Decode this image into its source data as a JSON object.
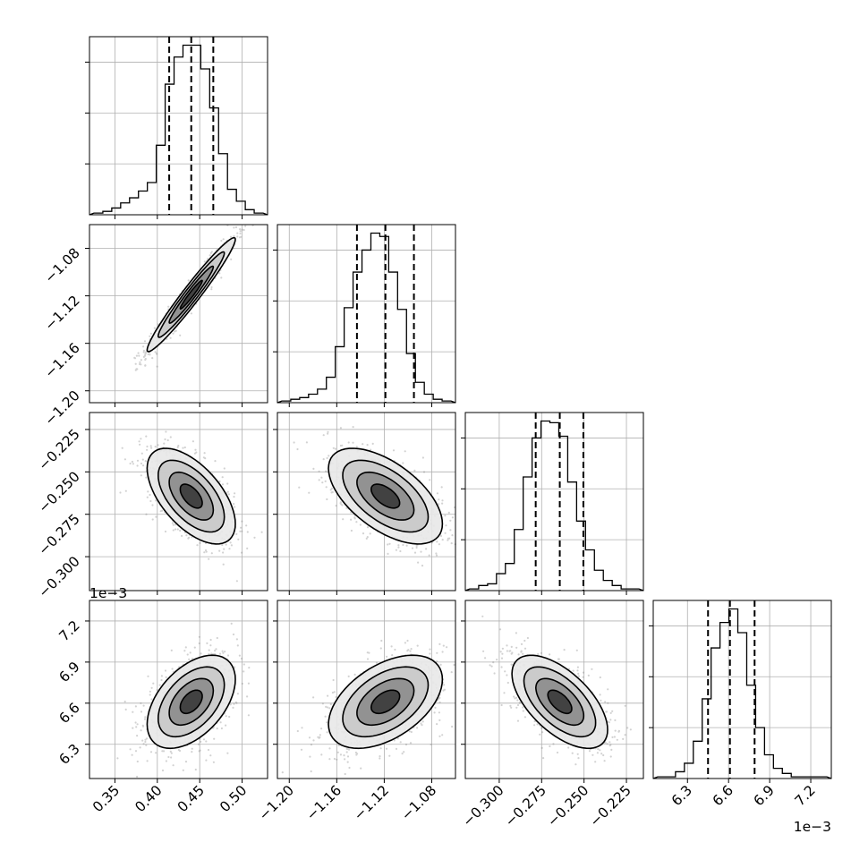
{
  "figure": {
    "background": "#ffffff",
    "ink": "#000000",
    "grid_color": "#b0b0b0"
  },
  "chart_data": {
    "type": "corner-plot",
    "description_free": true,
    "parameters": [
      {
        "index": 0,
        "range": [
          0.32,
          0.53
        ],
        "ticks": [
          0.35,
          0.4,
          0.45,
          0.5
        ],
        "tick_labels": [
          "0.35",
          "0.40",
          "0.45",
          "0.50"
        ],
        "offset_label": ""
      },
      {
        "index": 1,
        "range": [
          -1.21,
          -1.06
        ],
        "ticks": [
          -1.2,
          -1.16,
          -1.12,
          -1.08
        ],
        "tick_labels": [
          "−1.20",
          "−1.16",
          "−1.12",
          "−1.08"
        ],
        "offset_label": ""
      },
      {
        "index": 2,
        "range": [
          -0.32,
          -0.215
        ],
        "ticks": [
          -0.3,
          -0.275,
          -0.25,
          -0.225
        ],
        "tick_labels": [
          "−0.300",
          "−0.275",
          "−0.250",
          "−0.225"
        ],
        "offset_label": ""
      },
      {
        "index": 3,
        "range": [
          6.05,
          7.35
        ],
        "ticks": [
          6.3,
          6.6,
          6.9,
          7.2
        ],
        "tick_labels": [
          "6.3",
          "6.6",
          "6.9",
          "7.2"
        ],
        "offset_label": "1e−3"
      }
    ],
    "quantiles": [
      [
        0.414,
        0.44,
        0.466
      ],
      [
        -1.143,
        -1.119,
        -1.095
      ],
      [
        -0.2785,
        -0.2643,
        -0.2504
      ],
      [
        6.45,
        6.61,
        6.79
      ]
    ],
    "histograms": [
      [
        1,
        2,
        4,
        7,
        10,
        14,
        19,
        41,
        77,
        93,
        100,
        100,
        86,
        63,
        36,
        15,
        8,
        3,
        1
      ],
      [
        1,
        2,
        3,
        5,
        8,
        15,
        33,
        56,
        77,
        90,
        100,
        98,
        77,
        55,
        29,
        12,
        5,
        2,
        1
      ],
      [
        1,
        3,
        4,
        10,
        16,
        36,
        67,
        90,
        100,
        99,
        91,
        64,
        41,
        24,
        12,
        6,
        3,
        1,
        1
      ],
      [
        1,
        1,
        4,
        9,
        22,
        47,
        77,
        92,
        100,
        86,
        55,
        30,
        14,
        6,
        3,
        1,
        1,
        1,
        1
      ]
    ],
    "pairs": [
      {
        "row": 1,
        "col": 0,
        "mean": [
          0.44,
          -1.119
        ],
        "std": [
          0.026,
          0.024
        ],
        "corr": 0.97
      },
      {
        "row": 2,
        "col": 0,
        "mean": [
          0.44,
          -0.2643
        ],
        "std": [
          0.026,
          0.0141
        ],
        "corr": -0.58
      },
      {
        "row": 2,
        "col": 1,
        "mean": [
          -1.119,
          -0.2643
        ],
        "std": [
          0.024,
          0.0141
        ],
        "corr": -0.58
      },
      {
        "row": 3,
        "col": 0,
        "mean": [
          0.44,
          6.61
        ],
        "std": [
          0.026,
          0.17
        ],
        "corr": 0.48
      },
      {
        "row": 3,
        "col": 1,
        "mean": [
          -1.119,
          6.61
        ],
        "std": [
          0.024,
          0.17
        ],
        "corr": 0.48
      },
      {
        "row": 3,
        "col": 2,
        "mean": [
          -0.2643,
          6.61
        ],
        "std": [
          0.0141,
          0.17
        ],
        "corr": -0.6
      }
    ],
    "contour_levels_sigma": [
      0.5,
      1.0,
      1.5,
      2.0
    ],
    "grid": true,
    "title": "",
    "legend": ""
  }
}
